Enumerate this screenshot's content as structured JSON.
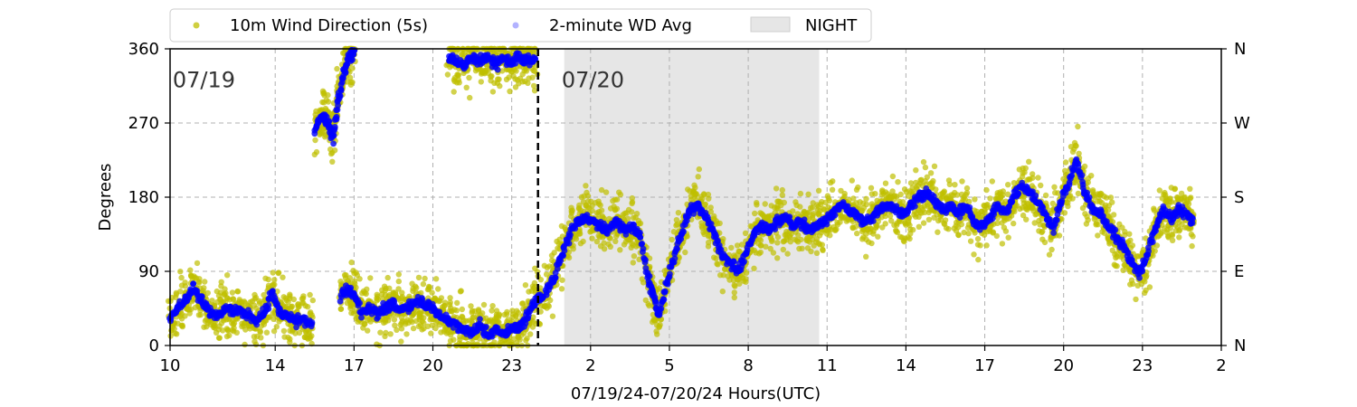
{
  "chart_data": {
    "type": "scatter",
    "xlabel": "07/19/24-07/20/24  Hours(UTC)",
    "ylabel": "Degrees",
    "x_units": "hours since 07/19 00:00 UTC",
    "xlim": [
      10,
      50
    ],
    "ylim": [
      0,
      360
    ],
    "x_ticks": [
      10,
      14,
      17,
      20,
      23,
      26,
      29,
      32,
      35,
      38,
      41,
      44,
      47,
      50
    ],
    "x_tick_labels": [
      "10",
      "14",
      "17",
      "20",
      "23",
      "2",
      "5",
      "8",
      "11",
      "14",
      "17",
      "20",
      "23",
      "2"
    ],
    "y_ticks": [
      0,
      90,
      180,
      270,
      360
    ],
    "y_tick_labels": [
      "0",
      "90",
      "180",
      "270",
      "360"
    ],
    "y2_tick_labels": [
      "N",
      "E",
      "S",
      "W",
      "N"
    ],
    "grid": true,
    "legend_placement": "top-left, above plot",
    "day_divider_x": 24,
    "date_labels": [
      {
        "text": "07/19",
        "x": 10.1,
        "y": 322
      },
      {
        "text": "07/20",
        "x": 24.9,
        "y": 322
      }
    ],
    "night": {
      "name": "NIGHT",
      "x_start": 25,
      "x_end": 34.7,
      "color": "#e6e6e6"
    },
    "series": [
      {
        "name": "10m Wind Direction (5s)",
        "color": "#bfbf00",
        "marker": "circle",
        "description": "noisy 5-second samples scattered around the 2-minute average"
      },
      {
        "name": "2-minute WD Avg",
        "color": "#0000ff",
        "marker": "circle",
        "points": [
          [
            10.0,
            30
          ],
          [
            10.3,
            45
          ],
          [
            10.6,
            55
          ],
          [
            10.9,
            70
          ],
          [
            11.2,
            55
          ],
          [
            11.5,
            40
          ],
          [
            11.8,
            35
          ],
          [
            12.1,
            45
          ],
          [
            12.4,
            40
          ],
          [
            12.7,
            45
          ],
          [
            13.0,
            35
          ],
          [
            13.3,
            30
          ],
          [
            13.6,
            40
          ],
          [
            13.9,
            65
          ],
          [
            14.2,
            40
          ],
          [
            14.5,
            35
          ],
          [
            14.8,
            30
          ],
          [
            15.1,
            30
          ],
          [
            15.4,
            25
          ],
          [
            15.5,
            260
          ],
          [
            15.8,
            280
          ],
          [
            16.0,
            270
          ],
          [
            16.2,
            250
          ],
          [
            16.4,
            300
          ],
          [
            16.6,
            330
          ],
          [
            16.8,
            350
          ],
          [
            17.0,
            355
          ],
          [
            16.5,
            60
          ],
          [
            16.8,
            70
          ],
          [
            17.0,
            60
          ],
          [
            17.3,
            40
          ],
          [
            17.6,
            45
          ],
          [
            17.9,
            40
          ],
          [
            18.2,
            45
          ],
          [
            18.5,
            50
          ],
          [
            18.8,
            45
          ],
          [
            19.1,
            45
          ],
          [
            19.4,
            55
          ],
          [
            19.7,
            50
          ],
          [
            20.0,
            45
          ],
          [
            20.3,
            35
          ],
          [
            20.6,
            30
          ],
          [
            20.9,
            25
          ],
          [
            21.2,
            20
          ],
          [
            21.5,
            15
          ],
          [
            21.8,
            25
          ],
          [
            22.1,
            10
          ],
          [
            22.4,
            20
          ],
          [
            22.7,
            15
          ],
          [
            23.0,
            20
          ],
          [
            23.3,
            25
          ],
          [
            23.6,
            35
          ],
          [
            23.9,
            55
          ],
          [
            24.2,
            60
          ],
          [
            20.6,
            350
          ],
          [
            20.9,
            345
          ],
          [
            21.2,
            340
          ],
          [
            21.5,
            350
          ],
          [
            21.8,
            345
          ],
          [
            22.1,
            350
          ],
          [
            22.4,
            340
          ],
          [
            22.7,
            348
          ],
          [
            23.0,
            345
          ],
          [
            23.3,
            350
          ],
          [
            23.6,
            348
          ],
          [
            23.9,
            345
          ],
          [
            24.3,
            65
          ],
          [
            24.6,
            80
          ],
          [
            24.9,
            110
          ],
          [
            25.2,
            135
          ],
          [
            25.5,
            150
          ],
          [
            25.8,
            155
          ],
          [
            26.1,
            150
          ],
          [
            26.4,
            145
          ],
          [
            26.7,
            140
          ],
          [
            27.0,
            150
          ],
          [
            27.3,
            140
          ],
          [
            27.6,
            145
          ],
          [
            27.9,
            130
          ],
          [
            28.2,
            80
          ],
          [
            28.4,
            60
          ],
          [
            28.6,
            35
          ],
          [
            28.9,
            75
          ],
          [
            29.2,
            110
          ],
          [
            29.5,
            140
          ],
          [
            29.8,
            165
          ],
          [
            30.1,
            170
          ],
          [
            30.4,
            155
          ],
          [
            30.7,
            135
          ],
          [
            31.0,
            110
          ],
          [
            31.3,
            100
          ],
          [
            31.6,
            90
          ],
          [
            31.9,
            110
          ],
          [
            32.2,
            135
          ],
          [
            32.5,
            145
          ],
          [
            32.8,
            140
          ],
          [
            33.1,
            150
          ],
          [
            33.4,
            155
          ],
          [
            33.7,
            145
          ],
          [
            34.0,
            150
          ],
          [
            34.3,
            140
          ],
          [
            34.6,
            145
          ],
          [
            34.9,
            150
          ],
          [
            35.2,
            160
          ],
          [
            35.5,
            170
          ],
          [
            35.8,
            165
          ],
          [
            36.1,
            160
          ],
          [
            36.4,
            150
          ],
          [
            36.7,
            155
          ],
          [
            37.0,
            165
          ],
          [
            37.3,
            170
          ],
          [
            37.6,
            165
          ],
          [
            37.9,
            160
          ],
          [
            38.2,
            170
          ],
          [
            38.5,
            180
          ],
          [
            38.8,
            185
          ],
          [
            39.1,
            175
          ],
          [
            39.4,
            165
          ],
          [
            39.7,
            170
          ],
          [
            40.0,
            160
          ],
          [
            40.3,
            170
          ],
          [
            40.6,
            150
          ],
          [
            40.9,
            145
          ],
          [
            41.2,
            155
          ],
          [
            41.5,
            170
          ],
          [
            41.8,
            160
          ],
          [
            42.1,
            180
          ],
          [
            42.4,
            195
          ],
          [
            42.7,
            185
          ],
          [
            43.0,
            175
          ],
          [
            43.3,
            160
          ],
          [
            43.6,
            140
          ],
          [
            43.9,
            175
          ],
          [
            44.2,
            200
          ],
          [
            44.5,
            225
          ],
          [
            44.8,
            185
          ],
          [
            45.1,
            165
          ],
          [
            45.4,
            160
          ],
          [
            45.7,
            145
          ],
          [
            46.0,
            130
          ],
          [
            46.3,
            120
          ],
          [
            46.6,
            100
          ],
          [
            46.9,
            90
          ],
          [
            47.2,
            110
          ],
          [
            47.5,
            145
          ],
          [
            47.8,
            165
          ],
          [
            48.1,
            155
          ],
          [
            48.4,
            165
          ],
          [
            48.7,
            160
          ],
          [
            48.9,
            150
          ]
        ]
      }
    ]
  }
}
